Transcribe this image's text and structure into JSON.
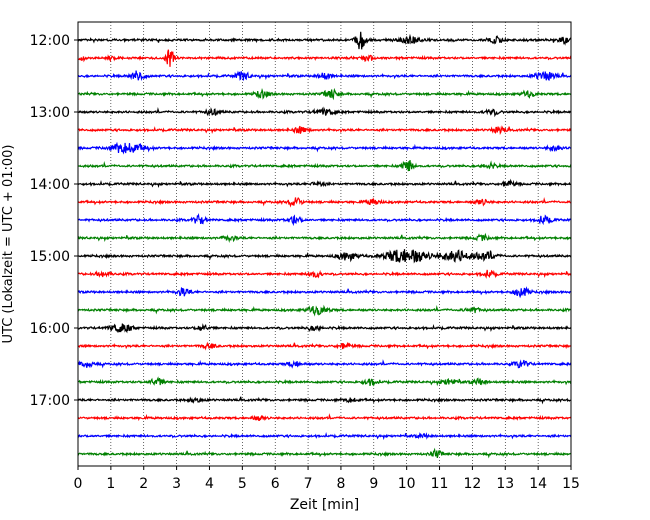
{
  "chart_data": {
    "type": "line",
    "title": "",
    "xlabel": "Zeit  [min]",
    "ylabel": "UTC (Lokalzeit = UTC + 01:00)",
    "xlim": [
      0,
      15
    ],
    "x_ticks": [
      0,
      1,
      2,
      3,
      4,
      5,
      6,
      7,
      8,
      9,
      10,
      11,
      12,
      13,
      14,
      15
    ],
    "x_tick_labels": [
      "0",
      "1",
      "2",
      "3",
      "4",
      "5",
      "6",
      "7",
      "8",
      "9",
      "10",
      "11",
      "12",
      "13",
      "14",
      "15"
    ],
    "y_tick_labels": [
      "12:00",
      "13:00",
      "14:00",
      "15:00",
      "16:00",
      "17:00"
    ],
    "grid": "vertical dotted",
    "color_cycle": [
      "#000000",
      "#ff0000",
      "#0000ff",
      "#008000"
    ],
    "traces": [
      {
        "start": "12:00",
        "bursts": [
          {
            "t": 8.6,
            "amp": 1.0,
            "w": 0.15
          },
          {
            "t": 10.1,
            "amp": 0.35,
            "w": 0.3
          },
          {
            "t": 12.7,
            "amp": 0.35,
            "w": 0.2
          },
          {
            "t": 14.8,
            "amp": 0.35,
            "w": 0.15
          }
        ]
      },
      {
        "start": "12:15",
        "bursts": [
          {
            "t": 0.1,
            "amp": 0.35,
            "w": 0.1
          },
          {
            "t": 1.0,
            "amp": 0.25,
            "w": 0.1
          },
          {
            "t": 2.8,
            "amp": 1.0,
            "w": 0.12
          },
          {
            "t": 8.8,
            "amp": 0.35,
            "w": 0.2
          }
        ]
      },
      {
        "start": "12:30",
        "bursts": [
          {
            "t": 1.8,
            "amp": 0.6,
            "w": 0.2
          },
          {
            "t": 5.0,
            "amp": 0.45,
            "w": 0.2
          },
          {
            "t": 7.5,
            "amp": 0.35,
            "w": 0.2
          },
          {
            "t": 14.2,
            "amp": 0.45,
            "w": 0.3
          }
        ]
      },
      {
        "start": "12:45",
        "bursts": [
          {
            "t": 5.6,
            "amp": 0.35,
            "w": 0.2
          },
          {
            "t": 7.7,
            "amp": 0.5,
            "w": 0.2
          },
          {
            "t": 13.7,
            "amp": 0.3,
            "w": 0.2
          }
        ]
      },
      {
        "start": "13:00",
        "bursts": [
          {
            "t": 4.1,
            "amp": 0.3,
            "w": 0.2
          },
          {
            "t": 7.5,
            "amp": 0.3,
            "w": 0.3
          },
          {
            "t": 12.6,
            "amp": 0.3,
            "w": 0.2
          }
        ]
      },
      {
        "start": "13:15",
        "bursts": [
          {
            "t": 6.8,
            "amp": 0.35,
            "w": 0.2
          },
          {
            "t": 12.8,
            "amp": 0.3,
            "w": 0.2
          }
        ]
      },
      {
        "start": "13:30",
        "bursts": [
          {
            "t": 1.5,
            "amp": 0.65,
            "w": 0.45
          },
          {
            "t": 14.5,
            "amp": 0.3,
            "w": 0.2
          }
        ]
      },
      {
        "start": "13:45",
        "bursts": [
          {
            "t": 10.05,
            "amp": 0.8,
            "w": 0.15
          },
          {
            "t": 12.5,
            "amp": 0.3,
            "w": 0.2
          }
        ]
      },
      {
        "start": "14:00",
        "bursts": [
          {
            "t": 7.3,
            "amp": 0.25,
            "w": 0.2
          },
          {
            "t": 13.1,
            "amp": 0.35,
            "w": 0.2
          }
        ]
      },
      {
        "start": "14:15",
        "bursts": [
          {
            "t": 6.6,
            "amp": 0.5,
            "w": 0.2
          },
          {
            "t": 9.0,
            "amp": 0.3,
            "w": 0.2
          },
          {
            "t": 12.3,
            "amp": 0.3,
            "w": 0.2
          }
        ]
      },
      {
        "start": "14:30",
        "bursts": [
          {
            "t": 3.7,
            "amp": 0.45,
            "w": 0.2
          },
          {
            "t": 6.6,
            "amp": 0.4,
            "w": 0.2
          },
          {
            "t": 14.2,
            "amp": 0.4,
            "w": 0.2
          }
        ]
      },
      {
        "start": "14:45",
        "bursts": [
          {
            "t": 4.6,
            "amp": 0.3,
            "w": 0.2
          },
          {
            "t": 12.3,
            "amp": 0.3,
            "w": 0.2
          }
        ]
      },
      {
        "start": "15:00",
        "bursts": [
          {
            "t": 8.2,
            "amp": 0.45,
            "w": 0.3
          },
          {
            "t": 10.0,
            "amp": 0.8,
            "w": 0.6
          },
          {
            "t": 11.5,
            "amp": 0.55,
            "w": 0.5
          },
          {
            "t": 12.4,
            "amp": 0.4,
            "w": 0.3
          }
        ]
      },
      {
        "start": "15:15",
        "bursts": [
          {
            "t": 0.8,
            "amp": 0.3,
            "w": 0.2
          },
          {
            "t": 7.2,
            "amp": 0.35,
            "w": 0.2
          },
          {
            "t": 12.5,
            "amp": 0.3,
            "w": 0.2
          }
        ]
      },
      {
        "start": "15:30",
        "bursts": [
          {
            "t": 3.2,
            "amp": 0.4,
            "w": 0.2
          },
          {
            "t": 13.5,
            "amp": 0.6,
            "w": 0.2
          }
        ]
      },
      {
        "start": "15:45",
        "bursts": [
          {
            "t": 7.3,
            "amp": 0.45,
            "w": 0.3
          },
          {
            "t": 12.0,
            "amp": 0.3,
            "w": 0.2
          }
        ]
      },
      {
        "start": "16:00",
        "bursts": [
          {
            "t": 1.3,
            "amp": 0.5,
            "w": 0.3
          },
          {
            "t": 3.8,
            "amp": 0.3,
            "w": 0.2
          },
          {
            "t": 7.2,
            "amp": 0.3,
            "w": 0.2
          }
        ]
      },
      {
        "start": "16:15",
        "bursts": [
          {
            "t": 4.0,
            "amp": 0.25,
            "w": 0.2
          },
          {
            "t": 8.1,
            "amp": 0.3,
            "w": 0.2
          }
        ]
      },
      {
        "start": "16:30",
        "bursts": [
          {
            "t": 0.3,
            "amp": 0.35,
            "w": 0.2
          },
          {
            "t": 6.6,
            "amp": 0.3,
            "w": 0.2
          },
          {
            "t": 13.5,
            "amp": 0.4,
            "w": 0.2
          }
        ]
      },
      {
        "start": "16:45",
        "bursts": [
          {
            "t": 2.4,
            "amp": 0.45,
            "w": 0.2
          },
          {
            "t": 8.9,
            "amp": 0.3,
            "w": 0.2
          },
          {
            "t": 11.3,
            "amp": 0.35,
            "w": 0.2
          },
          {
            "t": 12.2,
            "amp": 0.3,
            "w": 0.2
          }
        ]
      },
      {
        "start": "17:00",
        "bursts": [
          {
            "t": 3.6,
            "amp": 0.25,
            "w": 0.2
          },
          {
            "t": 8.3,
            "amp": 0.25,
            "w": 0.2
          }
        ]
      },
      {
        "start": "17:15",
        "bursts": [
          {
            "t": 5.5,
            "amp": 0.2,
            "w": 0.2
          }
        ]
      },
      {
        "start": "17:30",
        "bursts": [
          {
            "t": 10.5,
            "amp": 0.15,
            "w": 0.2
          }
        ]
      },
      {
        "start": "17:45",
        "bursts": [
          {
            "t": 10.9,
            "amp": 0.45,
            "w": 0.15
          }
        ]
      }
    ]
  }
}
